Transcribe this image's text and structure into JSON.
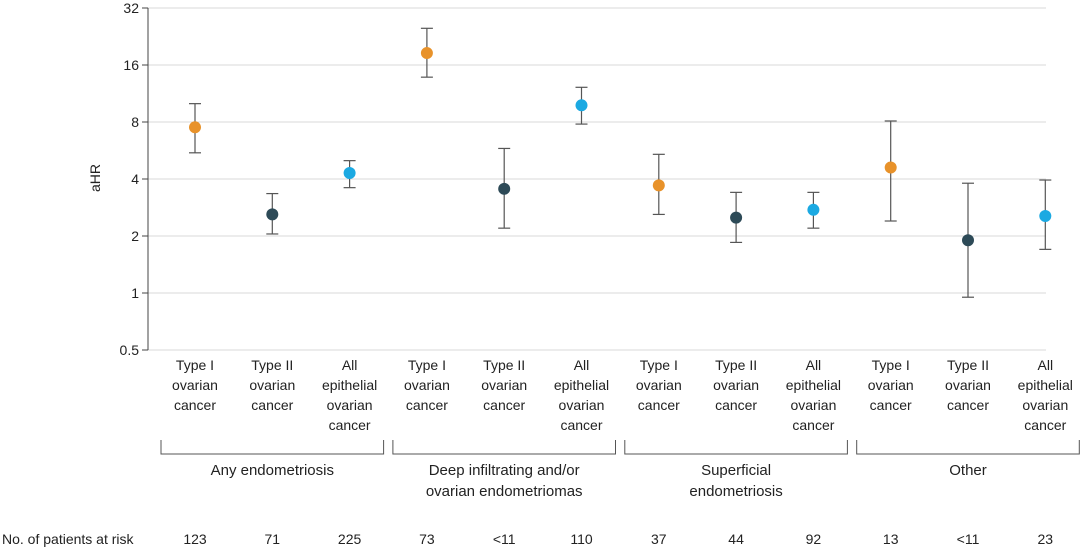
{
  "chart_data": {
    "type": "scatter",
    "title": "",
    "ylabel": "aHR",
    "yscale": "log2",
    "ylim": [
      0.5,
      32
    ],
    "yticks": [
      "0.5",
      "1",
      "2",
      "4",
      "8",
      "16",
      "32"
    ],
    "grid": true,
    "colors": {
      "type1": "#e8922a",
      "type2": "#2d4a57",
      "all": "#1ba9e2"
    },
    "groups": [
      {
        "label": [
          "Any endometriosis"
        ],
        "points": [
          {
            "cat": [
              "Type I",
              "ovarian",
              "cancer"
            ],
            "series": "type1",
            "y": 7.5,
            "lo": 5.5,
            "hi": 10.0,
            "risk": "123"
          },
          {
            "cat": [
              "Type II",
              "ovarian",
              "cancer"
            ],
            "series": "type2",
            "y": 2.6,
            "lo": 2.05,
            "hi": 3.35,
            "risk": "71"
          },
          {
            "cat": [
              "All",
              "epithelial",
              "ovarian",
              "cancer"
            ],
            "series": "all",
            "y": 4.3,
            "lo": 3.6,
            "hi": 5.0,
            "risk": "225"
          }
        ]
      },
      {
        "label": [
          "Deep infiltrating and/or",
          "ovarian endometriomas"
        ],
        "points": [
          {
            "cat": [
              "Type I",
              "ovarian",
              "cancer"
            ],
            "series": "type1",
            "y": 18.5,
            "lo": 13.8,
            "hi": 25.0,
            "risk": "73"
          },
          {
            "cat": [
              "Type II",
              "ovarian",
              "cancer"
            ],
            "series": "type2",
            "y": 3.55,
            "lo": 2.2,
            "hi": 5.8,
            "risk": "<11"
          },
          {
            "cat": [
              "All",
              "epithelial",
              "ovarian",
              "cancer"
            ],
            "series": "all",
            "y": 9.8,
            "lo": 7.8,
            "hi": 12.2,
            "risk": "110"
          }
        ]
      },
      {
        "label": [
          "Superficial",
          "endometriosis"
        ],
        "points": [
          {
            "cat": [
              "Type I",
              "ovarian",
              "cancer"
            ],
            "series": "type1",
            "y": 3.7,
            "lo": 2.6,
            "hi": 5.4,
            "risk": "37"
          },
          {
            "cat": [
              "Type II",
              "ovarian",
              "cancer"
            ],
            "series": "type2",
            "y": 2.5,
            "lo": 1.85,
            "hi": 3.4,
            "risk": "44"
          },
          {
            "cat": [
              "All",
              "epithelial",
              "ovarian",
              "cancer"
            ],
            "series": "all",
            "y": 2.75,
            "lo": 2.2,
            "hi": 3.4,
            "risk": "92"
          }
        ]
      },
      {
        "label": [
          "Other"
        ],
        "points": [
          {
            "cat": [
              "Type I",
              "ovarian",
              "cancer"
            ],
            "series": "type1",
            "y": 4.6,
            "lo": 2.4,
            "hi": 8.1,
            "risk": "13"
          },
          {
            "cat": [
              "Type II",
              "ovarian",
              "cancer"
            ],
            "series": "type2",
            "y": 1.9,
            "lo": 0.95,
            "hi": 3.8,
            "risk": "<11"
          },
          {
            "cat": [
              "All",
              "epithelial",
              "ovarian",
              "cancer"
            ],
            "series": "all",
            "y": 2.55,
            "lo": 1.7,
            "hi": 3.95,
            "risk": "23"
          }
        ]
      }
    ],
    "risk_row_title": "No. of patients at risk"
  }
}
